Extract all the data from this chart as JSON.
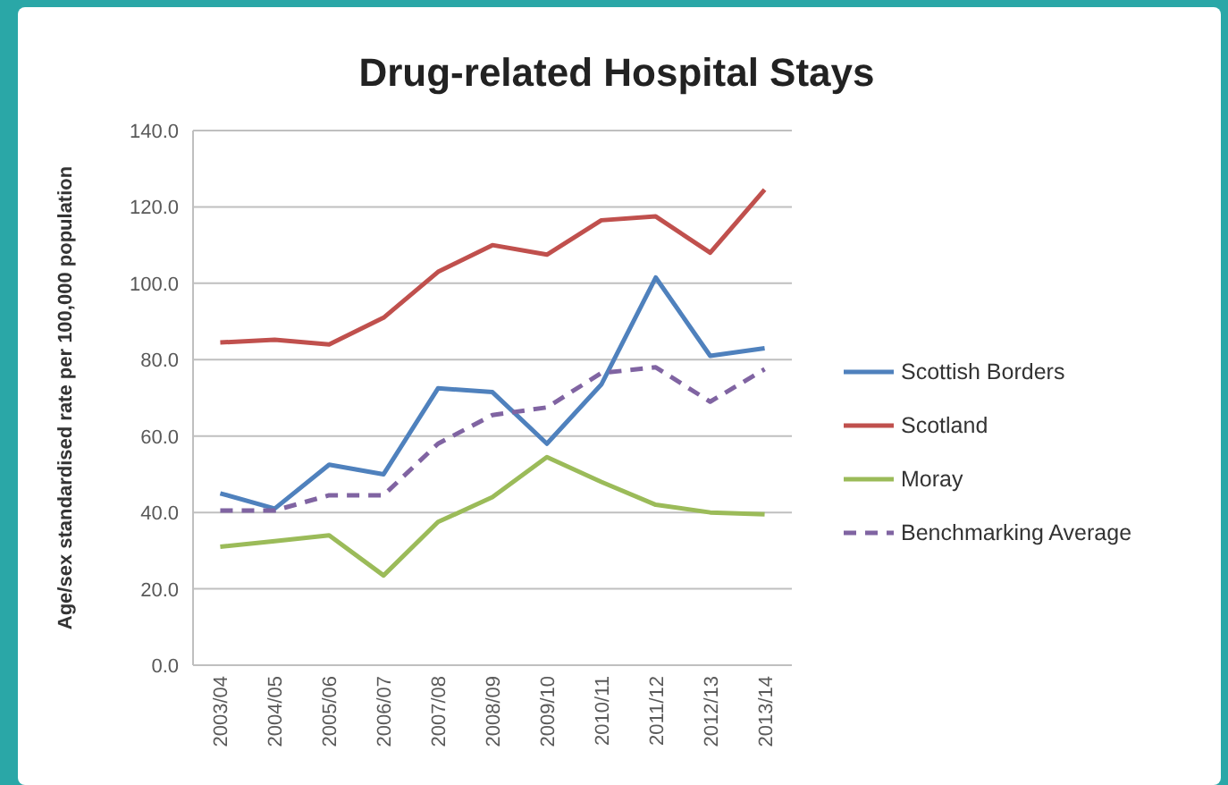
{
  "chart_data": {
    "type": "line",
    "title": "Drug-related Hospital Stays",
    "ylabel": "Age/sex standardised rate per 100,000 population",
    "categories": [
      "2003/04",
      "2004/05",
      "2005/06",
      "2006/07",
      "2007/08",
      "2008/09",
      "2009/10",
      "2010/11",
      "2011/12",
      "2012/13",
      "2013/14"
    ],
    "series": [
      {
        "name": "Scottish Borders",
        "color": "#4f81bd",
        "values": [
          45,
          41,
          52.5,
          50,
          72.5,
          71.5,
          58,
          73.5,
          101.5,
          81,
          83
        ]
      },
      {
        "name": "Scotland",
        "color": "#c0504d",
        "values": [
          84.5,
          85.2,
          84,
          91,
          103,
          110,
          107.5,
          116.5,
          117.5,
          108,
          124.5
        ]
      },
      {
        "name": "Moray",
        "color": "#9bbb59",
        "values": [
          31,
          32.5,
          34,
          23.5,
          37.5,
          44,
          54.5,
          48,
          42,
          40,
          39.5
        ]
      },
      {
        "name": "Benchmarking Average",
        "color": "#8064a2",
        "line_style": "dashed",
        "values": [
          40.5,
          40.5,
          44.5,
          44.5,
          58,
          65.5,
          67.5,
          76.5,
          78,
          69,
          77.5
        ]
      }
    ],
    "ylim": [
      0,
      140
    ],
    "yticks": [
      {
        "value": 0,
        "label": "0.0"
      },
      {
        "value": 20,
        "label": "20.0"
      },
      {
        "value": 40,
        "label": "40.0"
      },
      {
        "value": 60,
        "label": "60.0"
      },
      {
        "value": 80,
        "label": "80.0"
      },
      {
        "value": 100,
        "label": "100.0"
      },
      {
        "value": 120,
        "label": "120.0"
      },
      {
        "value": 140,
        "label": "140.0"
      }
    ],
    "grid": "y",
    "legend": "right",
    "marker": "none"
  }
}
